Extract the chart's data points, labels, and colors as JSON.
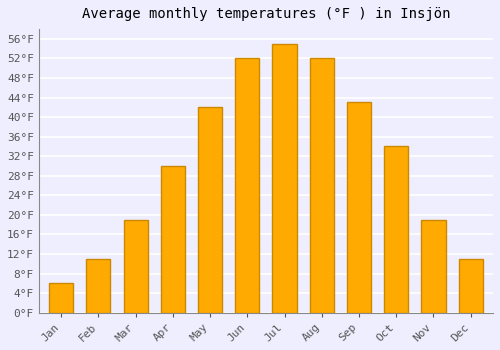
{
  "title": "Average monthly temperatures (°F ) in Insjön",
  "months": [
    "Jan",
    "Feb",
    "Mar",
    "Apr",
    "May",
    "Jun",
    "Jul",
    "Aug",
    "Sep",
    "Oct",
    "Nov",
    "Dec"
  ],
  "values": [
    6,
    11,
    19,
    30,
    42,
    52,
    55,
    52,
    43,
    34,
    19,
    11
  ],
  "bar_color": "#FFAA00",
  "bar_edge_color": "#CC8800",
  "background_color": "#EEEEFF",
  "plot_bg_color": "#EEEEFF",
  "grid_color": "#FFFFFF",
  "ylim": [
    0,
    58
  ],
  "yticks": [
    0,
    4,
    8,
    12,
    16,
    20,
    24,
    28,
    32,
    36,
    40,
    44,
    48,
    52,
    56
  ],
  "ytick_labels": [
    "0°F",
    "4°F",
    "8°F",
    "12°F",
    "16°F",
    "20°F",
    "24°F",
    "28°F",
    "32°F",
    "36°F",
    "40°F",
    "44°F",
    "48°F",
    "52°F",
    "56°F"
  ],
  "title_fontsize": 10,
  "tick_fontsize": 8,
  "bar_width": 0.65
}
